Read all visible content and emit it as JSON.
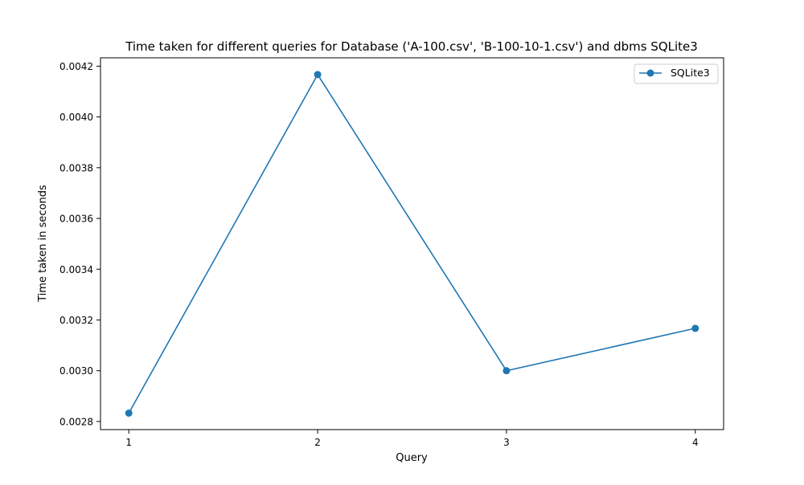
{
  "chart_data": {
    "type": "line",
    "title": "Time taken for different queries for Database ('A-100.csv', 'B-100-10-1.csv') and dbms SQLite3",
    "xlabel": "Query",
    "ylabel": "Time taken in seconds",
    "x": [
      1,
      2,
      3,
      4
    ],
    "x_ticks": [
      "1",
      "2",
      "3",
      "4"
    ],
    "xlim": [
      0.85,
      4.15
    ],
    "ylim": [
      0.002768,
      0.004233
    ],
    "y_ticks": [
      "0.0028",
      "0.0030",
      "0.0032",
      "0.0034",
      "0.0036",
      "0.0038",
      "0.0040",
      "0.0042"
    ],
    "grid": false,
    "legend_position": "top-right",
    "series": [
      {
        "name": "SQLite3",
        "color": "#1f77b4",
        "marker": "circle",
        "values": [
          0.002833,
          0.004167,
          0.003,
          0.003167
        ]
      }
    ]
  }
}
